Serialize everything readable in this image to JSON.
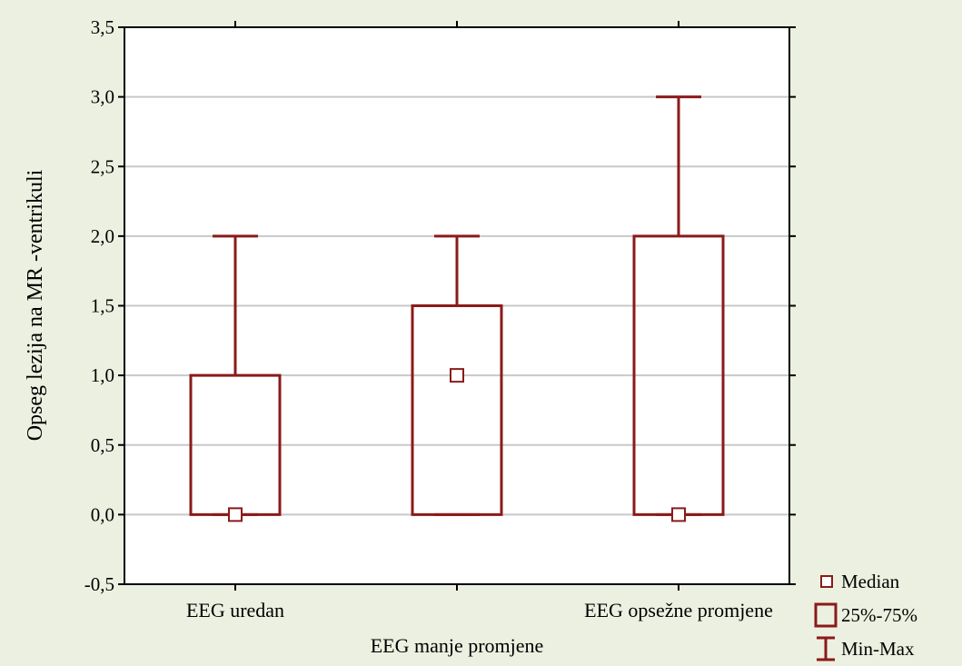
{
  "chart_data": {
    "type": "boxplot",
    "title": "",
    "xlabel": "",
    "ylabel": "Opseg lezija na MR -ventrikuli",
    "ylim": [
      -0.5,
      3.5
    ],
    "yticks": [
      -0.5,
      0.0,
      0.5,
      1.0,
      1.5,
      2.0,
      2.5,
      3.0,
      3.5
    ],
    "ytick_labels": [
      "-0,5",
      "0,0",
      "0,5",
      "1,0",
      "1,5",
      "2,0",
      "2,5",
      "3,0",
      "3,5"
    ],
    "grid": true,
    "categories": [
      "EEG uredan",
      "EEG manje promjene",
      "EEG opsežne promjene"
    ],
    "series": [
      {
        "category": "EEG uredan",
        "min": 0.0,
        "q1": 0.0,
        "median": 0.0,
        "q3": 1.0,
        "max": 2.0
      },
      {
        "category": "EEG manje promjene",
        "min": 0.0,
        "q1": 0.0,
        "median": 1.0,
        "q3": 1.5,
        "max": 2.0
      },
      {
        "category": "EEG opsežne promjene",
        "min": 0.0,
        "q1": 0.0,
        "median": 0.0,
        "q3": 2.0,
        "max": 3.0
      }
    ],
    "legend_position": "bottom-right",
    "legend": [
      {
        "symbol": "median",
        "label": "Median"
      },
      {
        "symbol": "box",
        "label": "25%-75%"
      },
      {
        "symbol": "whisker",
        "label": "Min-Max"
      }
    ],
    "colors": {
      "mark": "#8b1a1a",
      "grid": "#c8c8c8",
      "background": "#ecf0e0",
      "plot_background": "#ffffff"
    }
  }
}
